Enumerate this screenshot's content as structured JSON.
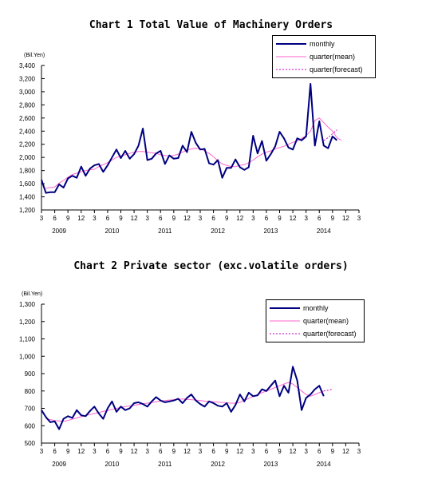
{
  "colors": {
    "monthly": "#000080",
    "quarter_mean": "#ff66cc",
    "quarter_forecast": "#cc00cc"
  },
  "chart_data": [
    {
      "type": "line",
      "title": "Chart 1 Total Value of Machinery Orders",
      "ylabel": "(Bil.Yen)",
      "ylim": [
        1200,
        3400
      ],
      "yticks": [
        "1,200",
        "1,400",
        "1,600",
        "1,800",
        "2,000",
        "2,200",
        "2,400",
        "2,600",
        "2,800",
        "3,000",
        "3,200",
        "3,400"
      ],
      "xtick_labels": [
        "3",
        "6",
        "9",
        "12",
        "3",
        "6",
        "9",
        "12",
        "3",
        "6",
        "9",
        "12",
        "3",
        "6",
        "9",
        "12",
        "3",
        "6",
        "9",
        "12",
        "3",
        "6",
        "9",
        "12",
        "3"
      ],
      "years": [
        "2009",
        "2010",
        "2011",
        "2012",
        "2013",
        "2014"
      ],
      "series": [
        {
          "name": "monthly",
          "start": "2009-03",
          "values": [
            1660,
            1460,
            1470,
            1470,
            1590,
            1540,
            1680,
            1720,
            1690,
            1860,
            1720,
            1830,
            1880,
            1900,
            1780,
            1880,
            2000,
            2120,
            1990,
            2100,
            1980,
            2050,
            2180,
            2440,
            1960,
            1980,
            2060,
            2100,
            1900,
            2030,
            1980,
            1990,
            2180,
            2080,
            2390,
            2220,
            2120,
            2130,
            1910,
            1890,
            1960,
            1690,
            1840,
            1840,
            1970,
            1850,
            1810,
            1850,
            2330,
            2060,
            2250,
            1950,
            2050,
            2170,
            2390,
            2290,
            2150,
            2120,
            2290,
            2260,
            2320,
            3120,
            2180,
            2550,
            2180,
            2140,
            2320,
            2260
          ]
        },
        {
          "name": "quarter(mean)",
          "start": "2009-04",
          "values": [
            1530,
            1540,
            1550,
            1610,
            1650,
            1700,
            1740,
            1760,
            1780,
            1800,
            1810,
            1820,
            1860,
            1890,
            1920,
            1960,
            2000,
            2020,
            2040,
            2060,
            2080,
            2090,
            2090,
            2080,
            2070,
            2060,
            2040,
            2030,
            2020,
            2030,
            2050,
            2080,
            2110,
            2130,
            2140,
            2130,
            2100,
            2060,
            2010,
            1950,
            1900,
            1880,
            1860,
            1860,
            1880,
            1890,
            1920,
            1960,
            2010,
            2050,
            2080,
            2100,
            2130,
            2150,
            2170,
            2200,
            2230,
            2250,
            2290,
            2330,
            2400,
            2560,
            2600,
            2530,
            2460,
            2400,
            2300,
            2260
          ]
        },
        {
          "name": "quarter(forecast)",
          "start": "2014-07",
          "values": [
            2260,
            2300,
            2360,
            2420
          ]
        }
      ]
    },
    {
      "type": "line",
      "title": "Chart 2 Private sector (exc.volatile orders)",
      "ylabel": "(Bil.Yen)",
      "ylim": [
        500,
        1300
      ],
      "yticks": [
        "500",
        "600",
        "700",
        "800",
        "900",
        "1,000",
        "1,100",
        "1,200",
        "1,300"
      ],
      "xtick_labels": [
        "3",
        "6",
        "9",
        "12",
        "3",
        "6",
        "9",
        "12",
        "3",
        "6",
        "9",
        "12",
        "3",
        "6",
        "9",
        "12",
        "3",
        "6",
        "9",
        "12",
        "3",
        "6",
        "9",
        "12",
        "3"
      ],
      "years": [
        "2009",
        "2010",
        "2011",
        "2012",
        "2013",
        "2014"
      ],
      "series": [
        {
          "name": "monthly",
          "start": "2009-03",
          "values": [
            690,
            650,
            620,
            625,
            580,
            640,
            655,
            645,
            690,
            660,
            655,
            685,
            710,
            670,
            640,
            700,
            740,
            680,
            710,
            690,
            700,
            730,
            735,
            725,
            710,
            740,
            765,
            745,
            735,
            740,
            745,
            755,
            730,
            760,
            780,
            745,
            725,
            710,
            740,
            730,
            715,
            710,
            730,
            680,
            720,
            780,
            740,
            790,
            770,
            775,
            810,
            800,
            830,
            860,
            770,
            830,
            790,
            940,
            860,
            690,
            760,
            780,
            810,
            830,
            770
          ]
        },
        {
          "name": "quarter(mean)",
          "start": "2009-04",
          "values": [
            640,
            635,
            630,
            628,
            625,
            630,
            638,
            645,
            652,
            658,
            664,
            670,
            676,
            682,
            688,
            694,
            700,
            705,
            710,
            714,
            718,
            722,
            726,
            730,
            734,
            738,
            742,
            745,
            748,
            750,
            752,
            754,
            752,
            750,
            748,
            745,
            742,
            740,
            738,
            736,
            734,
            732,
            730,
            730,
            735,
            745,
            757,
            770,
            780,
            790,
            800,
            810,
            820,
            830,
            840,
            850,
            840,
            820,
            800,
            780,
            770,
            780,
            790,
            800
          ]
        },
        {
          "name": "quarter(forecast)",
          "start": "2014-07",
          "values": [
            800,
            805,
            810
          ]
        }
      ]
    }
  ]
}
